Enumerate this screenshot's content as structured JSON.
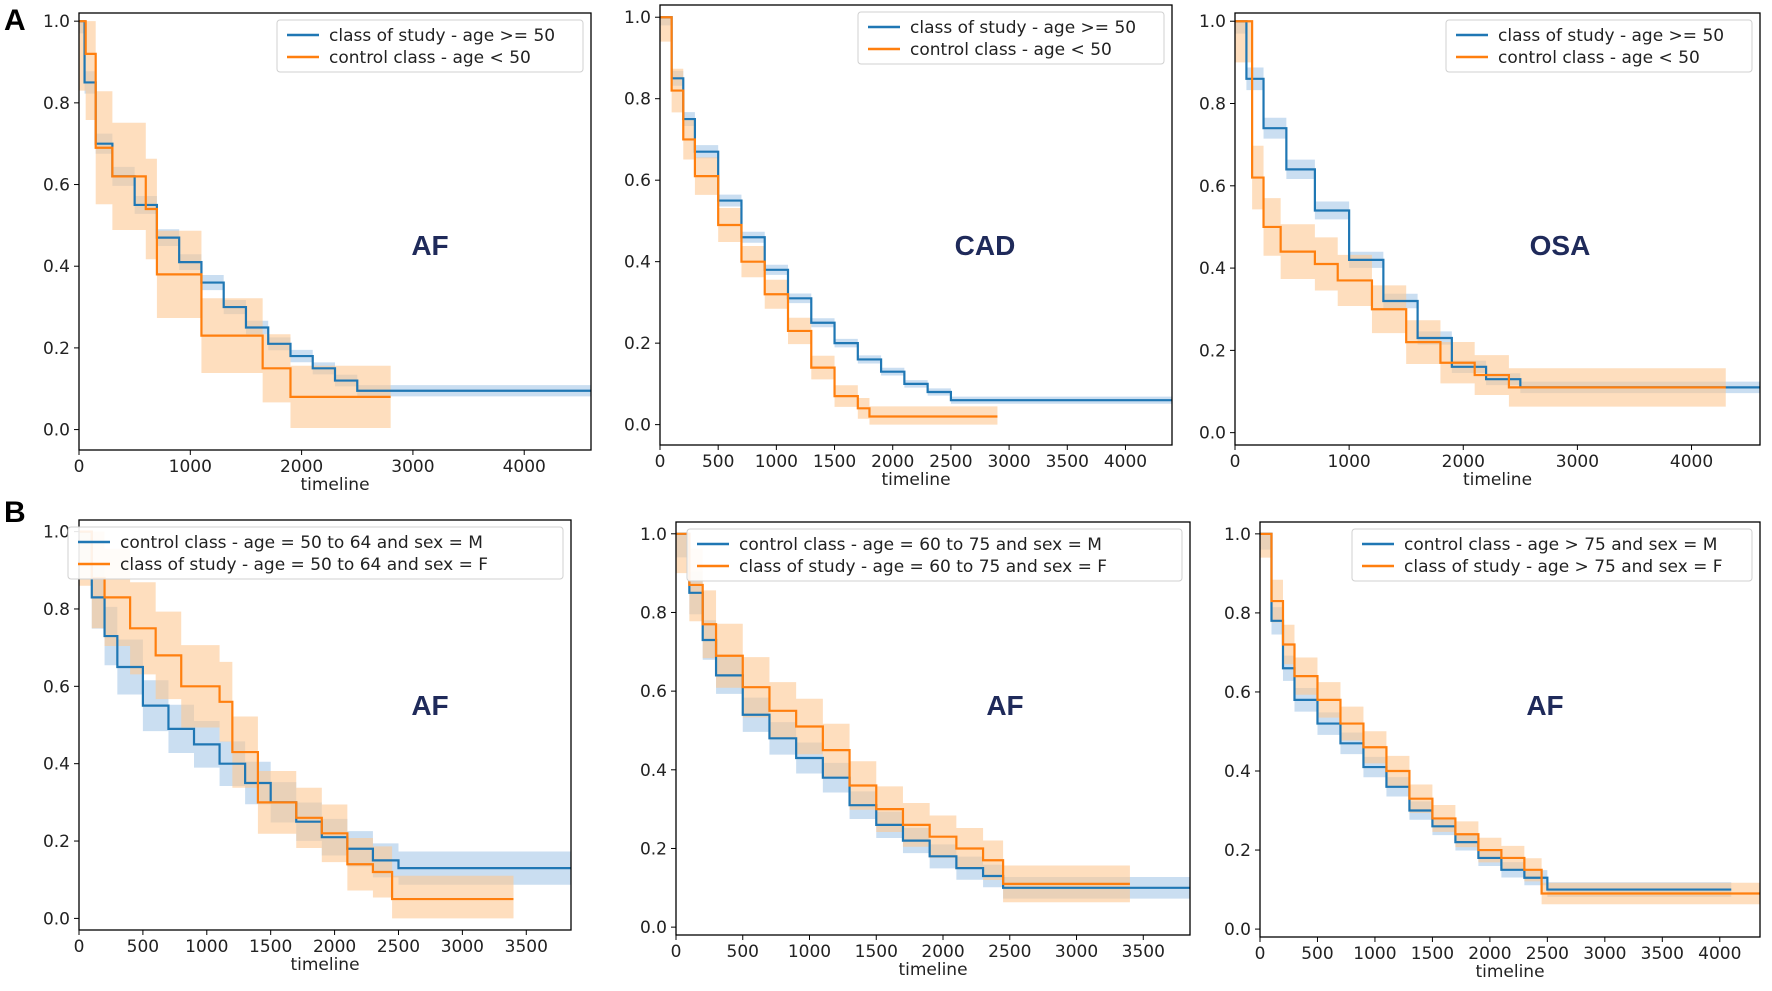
{
  "figure": {
    "panel_letters": [
      "A",
      "B"
    ]
  },
  "colors": {
    "blue": "#1f77b4",
    "orange": "#ff7f0e",
    "blue_band": "#9ec3e6",
    "orange_band": "#fdc893"
  },
  "chart_data": [
    {
      "type": "line",
      "panel": "A",
      "annotation": "AF",
      "xlabel": "timeline",
      "ylabel": "",
      "xlim": [
        0,
        4600
      ],
      "ylim": [
        -0.05,
        1.02
      ],
      "xticks": [
        0,
        1000,
        2000,
        3000,
        4000
      ],
      "yticks": [
        0.0,
        0.2,
        0.4,
        0.6,
        0.8,
        1.0
      ],
      "legend_position": "top-right",
      "series": [
        {
          "name": "class of study - age >= 50",
          "color": "blue",
          "x": [
            0,
            50,
            150,
            300,
            500,
            700,
            900,
            1100,
            1300,
            1500,
            1700,
            1900,
            2100,
            2300,
            2500,
            3000,
            4600
          ],
          "y": [
            1.0,
            0.85,
            0.7,
            0.62,
            0.55,
            0.47,
            0.41,
            0.36,
            0.3,
            0.25,
            0.21,
            0.18,
            0.15,
            0.12,
            0.095,
            0.095,
            0.095
          ],
          "band": 0.03
        },
        {
          "name": "control class - age < 50",
          "color": "orange",
          "x": [
            0,
            60,
            150,
            300,
            600,
            700,
            1050,
            1100,
            1650,
            1900,
            2800
          ],
          "y": [
            1.0,
            0.92,
            0.69,
            0.62,
            0.54,
            0.38,
            0.38,
            0.23,
            0.15,
            0.08,
            0.08
          ],
          "band": 0.17
        }
      ]
    },
    {
      "type": "line",
      "panel": "A",
      "annotation": "CAD",
      "xlabel": "timeline",
      "ylabel": "",
      "xlim": [
        0,
        4400
      ],
      "ylim": [
        -0.05,
        1.03
      ],
      "xticks": [
        0,
        500,
        1000,
        1500,
        2000,
        2500,
        3000,
        3500,
        4000
      ],
      "yticks": [
        0.0,
        0.2,
        0.4,
        0.6,
        0.8,
        1.0
      ],
      "legend_position": "top-right",
      "series": [
        {
          "name": "class of study - age >= 50",
          "color": "blue",
          "x": [
            0,
            100,
            200,
            300,
            500,
            700,
            900,
            1100,
            1300,
            1500,
            1700,
            1900,
            2100,
            2300,
            2500,
            4400
          ],
          "y": [
            1.0,
            0.85,
            0.75,
            0.67,
            0.55,
            0.46,
            0.38,
            0.31,
            0.25,
            0.2,
            0.16,
            0.13,
            0.1,
            0.08,
            0.06,
            0.06
          ],
          "band": 0.02
        },
        {
          "name": "control class - age < 50",
          "color": "orange",
          "x": [
            0,
            100,
            200,
            300,
            500,
            700,
            900,
            1100,
            1300,
            1500,
            1700,
            1800,
            2900
          ],
          "y": [
            1.0,
            0.82,
            0.7,
            0.61,
            0.49,
            0.4,
            0.32,
            0.23,
            0.14,
            0.07,
            0.04,
            0.02,
            0.02
          ],
          "band": 0.06
        }
      ]
    },
    {
      "type": "line",
      "panel": "A",
      "annotation": "OSA",
      "xlabel": "timeline",
      "ylabel": "",
      "xlim": [
        0,
        4600
      ],
      "ylim": [
        -0.03,
        1.02
      ],
      "xticks": [
        0,
        1000,
        2000,
        3000,
        4000
      ],
      "yticks": [
        0.0,
        0.2,
        0.4,
        0.6,
        0.8,
        1.0
      ],
      "legend_position": "top-right",
      "series": [
        {
          "name": "class of study - age >= 50",
          "color": "blue",
          "x": [
            0,
            100,
            250,
            450,
            700,
            1000,
            1300,
            1600,
            1900,
            2200,
            2500,
            4600
          ],
          "y": [
            1.0,
            0.86,
            0.74,
            0.64,
            0.54,
            0.42,
            0.32,
            0.23,
            0.16,
            0.13,
            0.11,
            0.11
          ],
          "band": 0.03
        },
        {
          "name": "control class - age < 50",
          "color": "orange",
          "x": [
            0,
            150,
            250,
            400,
            700,
            900,
            1200,
            1500,
            1800,
            2100,
            2400,
            4300
          ],
          "y": [
            1.0,
            0.62,
            0.5,
            0.44,
            0.41,
            0.37,
            0.3,
            0.22,
            0.17,
            0.14,
            0.11,
            0.11
          ],
          "band": 0.1
        }
      ]
    },
    {
      "type": "line",
      "panel": "B",
      "annotation": "AF",
      "xlabel": "timeline",
      "ylabel": "",
      "xlim": [
        0,
        3850
      ],
      "ylim": [
        -0.03,
        1.03
      ],
      "xticks": [
        0,
        500,
        1000,
        1500,
        2000,
        2500,
        3000,
        3500
      ],
      "yticks": [
        0.0,
        0.2,
        0.4,
        0.6,
        0.8,
        1.0
      ],
      "legend_position": "top-right",
      "series": [
        {
          "name": "control class - age = 50 to 64 and sex = M",
          "color": "blue",
          "x": [
            0,
            100,
            200,
            300,
            500,
            700,
            900,
            1100,
            1300,
            1500,
            1700,
            1900,
            2100,
            2300,
            2500,
            3850
          ],
          "y": [
            1.0,
            0.83,
            0.73,
            0.65,
            0.55,
            0.49,
            0.45,
            0.4,
            0.35,
            0.3,
            0.25,
            0.21,
            0.18,
            0.15,
            0.13,
            0.13
          ],
          "band": 0.09
        },
        {
          "name": "class of study - age = 50 to 64 and sex = F",
          "color": "orange",
          "x": [
            0,
            100,
            200,
            400,
            600,
            800,
            1100,
            1200,
            1400,
            1700,
            1900,
            2100,
            2300,
            2450,
            3400
          ],
          "y": [
            1.0,
            0.88,
            0.83,
            0.75,
            0.68,
            0.6,
            0.56,
            0.43,
            0.3,
            0.26,
            0.22,
            0.14,
            0.12,
            0.05,
            0.05
          ],
          "band": 0.14
        }
      ]
    },
    {
      "type": "line",
      "panel": "B",
      "annotation": "AF",
      "xlabel": "timeline",
      "ylabel": "",
      "xlim": [
        0,
        3850
      ],
      "ylim": [
        -0.02,
        1.03
      ],
      "xticks": [
        0,
        500,
        1000,
        1500,
        2000,
        2500,
        3000,
        3500
      ],
      "yticks": [
        0.0,
        0.2,
        0.4,
        0.6,
        0.8,
        1.0
      ],
      "legend_position": "top-right",
      "series": [
        {
          "name": "control class - age = 60 to 75 and sex = M",
          "color": "blue",
          "x": [
            0,
            100,
            200,
            300,
            500,
            700,
            900,
            1100,
            1300,
            1500,
            1700,
            1900,
            2100,
            2300,
            2450,
            3850
          ],
          "y": [
            1.0,
            0.85,
            0.73,
            0.64,
            0.54,
            0.48,
            0.43,
            0.38,
            0.31,
            0.26,
            0.22,
            0.18,
            0.15,
            0.13,
            0.1,
            0.1
          ],
          "band": 0.06
        },
        {
          "name": "class of study - age = 60 to 75 and sex = F",
          "color": "orange",
          "x": [
            0,
            100,
            200,
            300,
            500,
            700,
            900,
            1100,
            1300,
            1500,
            1700,
            1900,
            2100,
            2300,
            2450,
            3400
          ],
          "y": [
            1.0,
            0.87,
            0.77,
            0.69,
            0.61,
            0.55,
            0.51,
            0.45,
            0.36,
            0.3,
            0.26,
            0.23,
            0.2,
            0.17,
            0.11,
            0.11
          ],
          "band": 0.1
        }
      ]
    },
    {
      "type": "line",
      "panel": "B",
      "annotation": "AF",
      "xlabel": "timeline",
      "ylabel": "",
      "xlim": [
        0,
        4350
      ],
      "ylim": [
        -0.02,
        1.03
      ],
      "xticks": [
        0,
        500,
        1000,
        1500,
        2000,
        2500,
        3000,
        3500,
        4000
      ],
      "yticks": [
        0.0,
        0.2,
        0.4,
        0.6,
        0.8,
        1.0
      ],
      "legend_position": "top-right",
      "series": [
        {
          "name": "control class - age > 75 and sex = M",
          "color": "blue",
          "x": [
            0,
            100,
            200,
            300,
            500,
            700,
            900,
            1100,
            1300,
            1500,
            1700,
            1900,
            2100,
            2300,
            2500,
            4100
          ],
          "y": [
            1.0,
            0.78,
            0.66,
            0.58,
            0.52,
            0.47,
            0.41,
            0.36,
            0.3,
            0.26,
            0.22,
            0.18,
            0.15,
            0.13,
            0.1,
            0.1
          ],
          "band": 0.04
        },
        {
          "name": "class of study - age > 75 and sex = F",
          "color": "orange",
          "x": [
            0,
            100,
            200,
            300,
            500,
            700,
            900,
            1100,
            1300,
            1500,
            1700,
            1900,
            2100,
            2300,
            2450,
            4350
          ],
          "y": [
            1.0,
            0.83,
            0.72,
            0.64,
            0.58,
            0.52,
            0.46,
            0.4,
            0.33,
            0.28,
            0.24,
            0.2,
            0.18,
            0.15,
            0.09,
            0.09
          ],
          "band": 0.06
        }
      ]
    }
  ]
}
